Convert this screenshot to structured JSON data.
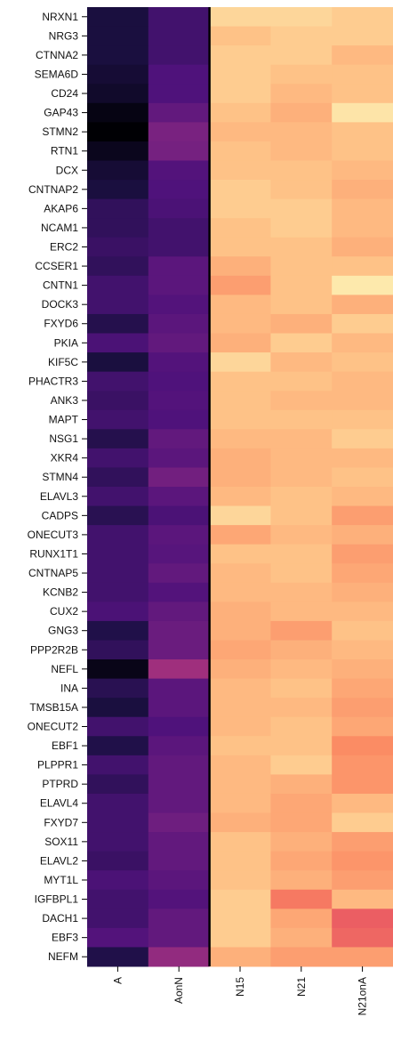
{
  "chart_data": {
    "type": "heatmap",
    "columns": [
      "A",
      "AonN",
      "N15",
      "N21",
      "N21onA"
    ],
    "rows": [
      "NRXN1",
      "NRG3",
      "CTNNA2",
      "SEMA6D",
      "CD24",
      "GAP43",
      "STMN2",
      "RTN1",
      "DCX",
      "CNTNAP2",
      "AKAP6",
      "NCAM1",
      "ERC2",
      "CCSER1",
      "CNTN1",
      "DOCK3",
      "FXYD6",
      "PKIA",
      "KIF5C",
      "PHACTR3",
      "ANK3",
      "MAPT",
      "NSG1",
      "XKR4",
      "STMN4",
      "ELAVL3",
      "CADPS",
      "ONECUT3",
      "RUNX1T1",
      "CNTNAP5",
      "KCNB2",
      "CUX2",
      "GNG3",
      "PPP2R2B",
      "NEFL",
      "INA",
      "TMSB15A",
      "ONECUT2",
      "EBF1",
      "PLPPR1",
      "PTPRD",
      "ELAVL4",
      "FXYD7",
      "SOX11",
      "ELAVL2",
      "MYT1L",
      "IGFBPL1",
      "DACH1",
      "EBF3",
      "NEFM"
    ],
    "values": [
      [
        0.12,
        0.22,
        0.92,
        0.92,
        0.9
      ],
      [
        0.12,
        0.22,
        0.88,
        0.9,
        0.9
      ],
      [
        0.12,
        0.22,
        0.9,
        0.9,
        0.86
      ],
      [
        0.1,
        0.25,
        0.9,
        0.88,
        0.88
      ],
      [
        0.08,
        0.25,
        0.9,
        0.86,
        0.88
      ],
      [
        0.03,
        0.3,
        0.88,
        0.84,
        0.95
      ],
      [
        0.0,
        0.36,
        0.86,
        0.86,
        0.88
      ],
      [
        0.05,
        0.35,
        0.88,
        0.86,
        0.88
      ],
      [
        0.1,
        0.26,
        0.88,
        0.88,
        0.86
      ],
      [
        0.12,
        0.25,
        0.9,
        0.88,
        0.84
      ],
      [
        0.18,
        0.24,
        0.9,
        0.9,
        0.86
      ],
      [
        0.18,
        0.22,
        0.88,
        0.9,
        0.86
      ],
      [
        0.2,
        0.22,
        0.88,
        0.88,
        0.84
      ],
      [
        0.18,
        0.28,
        0.84,
        0.88,
        0.88
      ],
      [
        0.22,
        0.28,
        0.8,
        0.88,
        0.96
      ],
      [
        0.22,
        0.26,
        0.86,
        0.88,
        0.84
      ],
      [
        0.15,
        0.28,
        0.86,
        0.84,
        0.9
      ],
      [
        0.24,
        0.3,
        0.84,
        0.9,
        0.86
      ],
      [
        0.12,
        0.26,
        0.92,
        0.86,
        0.88
      ],
      [
        0.22,
        0.25,
        0.88,
        0.88,
        0.86
      ],
      [
        0.2,
        0.26,
        0.88,
        0.86,
        0.86
      ],
      [
        0.22,
        0.25,
        0.88,
        0.88,
        0.88
      ],
      [
        0.15,
        0.3,
        0.86,
        0.86,
        0.9
      ],
      [
        0.22,
        0.28,
        0.84,
        0.86,
        0.86
      ],
      [
        0.18,
        0.34,
        0.84,
        0.86,
        0.88
      ],
      [
        0.22,
        0.28,
        0.86,
        0.88,
        0.86
      ],
      [
        0.16,
        0.24,
        0.92,
        0.88,
        0.8
      ],
      [
        0.22,
        0.28,
        0.82,
        0.86,
        0.84
      ],
      [
        0.22,
        0.27,
        0.88,
        0.88,
        0.8
      ],
      [
        0.22,
        0.3,
        0.86,
        0.88,
        0.82
      ],
      [
        0.22,
        0.26,
        0.86,
        0.86,
        0.84
      ],
      [
        0.24,
        0.3,
        0.84,
        0.86,
        0.86
      ],
      [
        0.14,
        0.32,
        0.84,
        0.8,
        0.88
      ],
      [
        0.18,
        0.32,
        0.82,
        0.84,
        0.86
      ],
      [
        0.04,
        0.45,
        0.84,
        0.86,
        0.84
      ],
      [
        0.16,
        0.28,
        0.86,
        0.88,
        0.82
      ],
      [
        0.12,
        0.28,
        0.86,
        0.86,
        0.8
      ],
      [
        0.22,
        0.25,
        0.86,
        0.88,
        0.82
      ],
      [
        0.14,
        0.28,
        0.88,
        0.88,
        0.76
      ],
      [
        0.22,
        0.3,
        0.86,
        0.9,
        0.78
      ],
      [
        0.18,
        0.3,
        0.86,
        0.84,
        0.78
      ],
      [
        0.22,
        0.3,
        0.86,
        0.82,
        0.86
      ],
      [
        0.22,
        0.33,
        0.84,
        0.82,
        0.9
      ],
      [
        0.22,
        0.3,
        0.88,
        0.84,
        0.8
      ],
      [
        0.2,
        0.3,
        0.88,
        0.82,
        0.78
      ],
      [
        0.24,
        0.28,
        0.88,
        0.84,
        0.8
      ],
      [
        0.22,
        0.26,
        0.9,
        0.72,
        0.86
      ],
      [
        0.22,
        0.3,
        0.9,
        0.82,
        0.66
      ],
      [
        0.26,
        0.3,
        0.9,
        0.84,
        0.68
      ],
      [
        0.14,
        0.42,
        0.84,
        0.8,
        0.8
      ]
    ],
    "colormap": "magma",
    "vmin": 0,
    "vmax": 1,
    "divider_after_column": "AonN",
    "title": "",
    "xlabel": "",
    "ylabel": "",
    "legend": "none",
    "grid": false
  },
  "colors": {
    "background": "#ffffff",
    "divider": "#000000",
    "tick": "#000000",
    "label": "#111111"
  }
}
